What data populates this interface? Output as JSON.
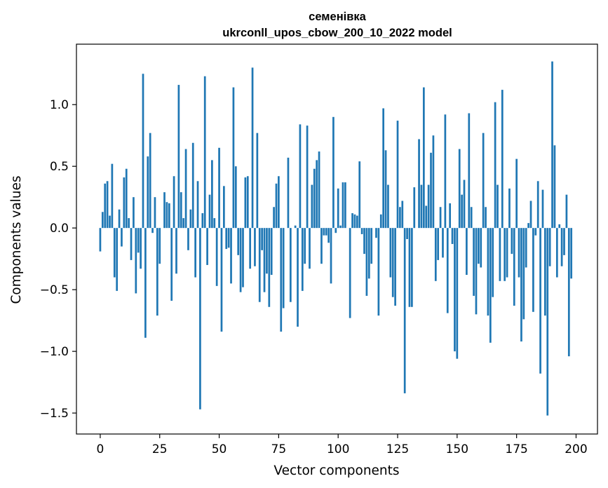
{
  "chart_data": {
    "type": "bar",
    "title_line1": "семенівка",
    "title_line2": "ukrconll_upos_cbow_200_10_2022 model",
    "xlabel": "Vector components",
    "ylabel": "Components values",
    "xlim": [
      -10,
      209
    ],
    "ylim": [
      -1.67,
      1.49
    ],
    "x_ticks": [
      0,
      25,
      50,
      75,
      100,
      125,
      150,
      175,
      200
    ],
    "x_tick_labels": [
      "0",
      "25",
      "50",
      "75",
      "100",
      "125",
      "150",
      "175",
      "200"
    ],
    "y_ticks": [
      -1.5,
      -1.0,
      -0.5,
      0.0,
      0.5,
      1.0
    ],
    "y_tick_labels": [
      "−1.5",
      "−1.0",
      "−0.5",
      "0.0",
      "0.5",
      "1.0"
    ],
    "grid": false,
    "bar_color": "#1f77b4",
    "values": [
      -0.19,
      0.13,
      0.36,
      0.38,
      0.1,
      0.52,
      -0.4,
      -0.51,
      0.15,
      -0.15,
      0.41,
      0.48,
      0.08,
      -0.26,
      0.25,
      -0.53,
      -0.2,
      -0.33,
      1.25,
      -0.89,
      0.58,
      0.77,
      -0.04,
      0.25,
      -0.71,
      -0.29,
      0.0,
      0.29,
      0.21,
      0.2,
      -0.59,
      0.42,
      -0.37,
      1.16,
      0.29,
      0.08,
      0.64,
      -0.18,
      0.15,
      0.69,
      -0.4,
      0.38,
      -1.47,
      0.12,
      1.23,
      -0.3,
      0.27,
      0.55,
      0.08,
      -0.47,
      0.65,
      -0.84,
      0.34,
      -0.17,
      -0.16,
      -0.45,
      1.14,
      0.5,
      -0.22,
      -0.52,
      -0.48,
      0.41,
      0.42,
      -0.33,
      1.3,
      -0.31,
      0.77,
      -0.6,
      -0.18,
      -0.52,
      -0.37,
      -0.64,
      -0.38,
      0.17,
      0.36,
      0.42,
      -0.84,
      -0.65,
      0.0,
      0.57,
      -0.6,
      0.0,
      0.02,
      -0.8,
      0.84,
      -0.51,
      -0.29,
      0.83,
      -0.33,
      0.35,
      0.48,
      0.55,
      0.62,
      -0.29,
      -0.06,
      -0.06,
      -0.12,
      -0.45,
      0.9,
      -0.04,
      0.32,
      0.02,
      0.37,
      0.37,
      0.0,
      -0.73,
      0.12,
      0.11,
      0.1,
      0.54,
      -0.05,
      -0.21,
      -0.55,
      -0.41,
      -0.29,
      0.0,
      -0.08,
      -0.71,
      0.11,
      0.97,
      0.63,
      0.35,
      -0.4,
      -0.56,
      -0.63,
      0.87,
      0.17,
      0.22,
      -1.34,
      -0.09,
      -0.64,
      -0.64,
      0.33,
      0.0,
      0.72,
      0.35,
      1.14,
      0.18,
      0.35,
      0.61,
      0.75,
      -0.43,
      -0.26,
      0.17,
      -0.24,
      0.92,
      -0.69,
      0.2,
      -0.13,
      -1.0,
      -1.06,
      0.64,
      0.27,
      0.39,
      -0.38,
      0.93,
      0.17,
      -0.55,
      -0.7,
      -0.29,
      -0.32,
      0.77,
      0.17,
      -0.71,
      -0.93,
      -0.56,
      1.02,
      0.35,
      -0.43,
      1.12,
      -0.43,
      -0.4,
      0.32,
      -0.21,
      -0.63,
      0.56,
      -0.4,
      -0.92,
      -0.74,
      -0.32,
      0.04,
      0.22,
      -0.68,
      -0.06,
      0.38,
      -1.18,
      0.31,
      -0.71,
      -1.52,
      -0.31,
      1.35,
      0.67,
      -0.4,
      0.03,
      -0.31,
      -0.22,
      0.27,
      -1.04,
      -0.41,
      0.0
    ]
  }
}
